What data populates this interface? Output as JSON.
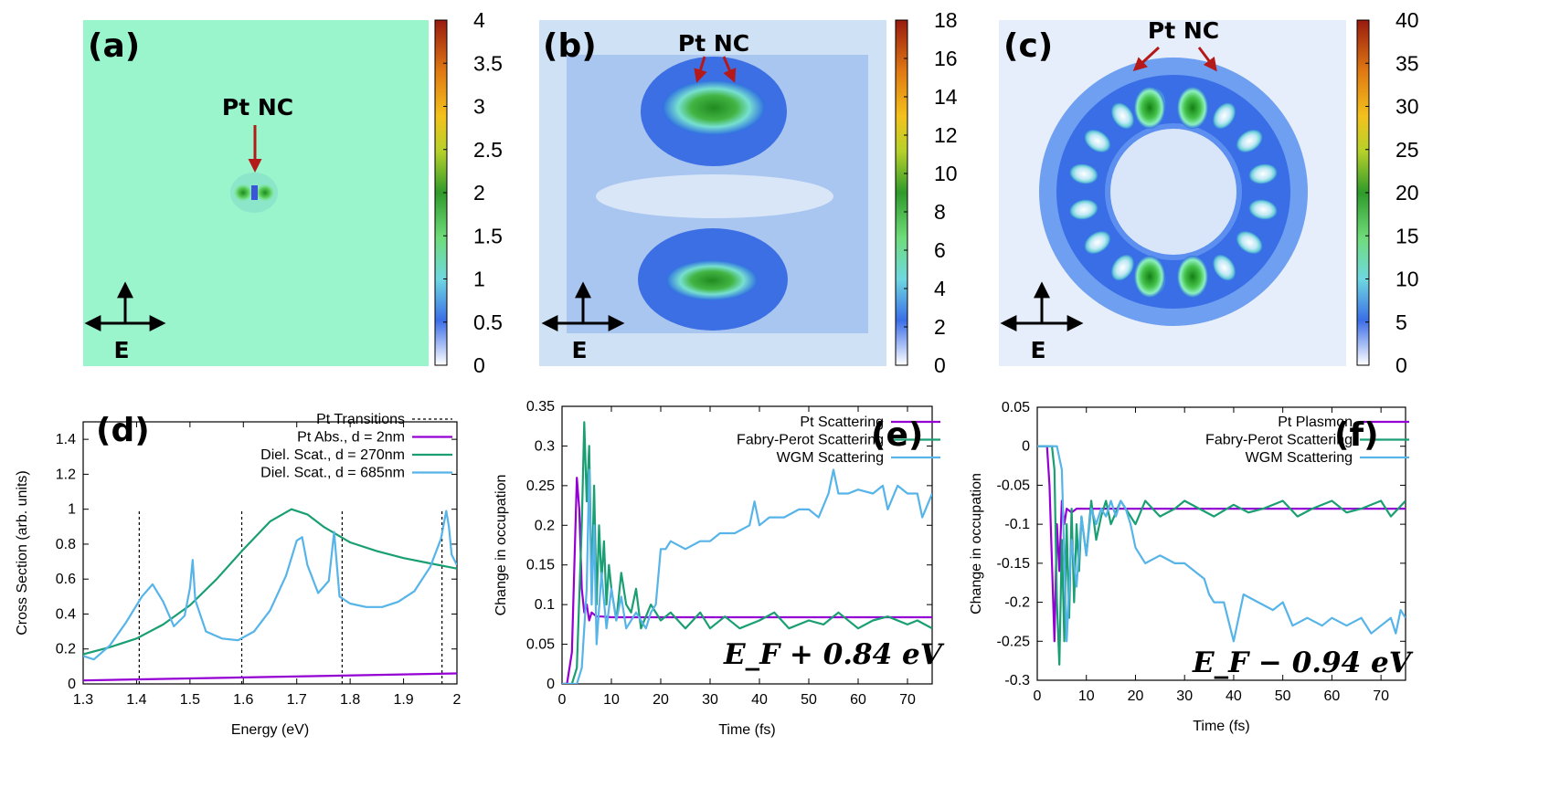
{
  "colors": {
    "magenta": "#9400d3",
    "green": "#1a9e73",
    "blue": "#56b4e9",
    "arrow_red": "#b41a1a"
  },
  "field_maps": [
    {
      "label": "(a)",
      "pt_label": "Pt NC",
      "e_label": "E",
      "background": "#9af5cc",
      "colorbar_ticks": [
        "4",
        "3.5",
        "3",
        "2.5",
        "2",
        "1.5",
        "1",
        "0.5",
        "0"
      ]
    },
    {
      "label": "(b)",
      "pt_label": "Pt NC",
      "e_label": "E",
      "background": "#cfe1f5",
      "colorbar_ticks": [
        "18",
        "16",
        "14",
        "12",
        "10",
        "8",
        "6",
        "4",
        "2",
        "0"
      ]
    },
    {
      "label": "(c)",
      "pt_label": "Pt NC",
      "e_label": "E",
      "background": "#e6eefb",
      "colorbar_ticks": [
        "40",
        "35",
        "30",
        "25",
        "20",
        "15",
        "10",
        "5",
        "0"
      ]
    }
  ],
  "chart_data": [
    {
      "panel": "(d)",
      "type": "line",
      "xlabel": "Energy (eV)",
      "ylabel": "Cross Section (arb. units)",
      "xlim": [
        1.3,
        2.0
      ],
      "ylim": [
        0,
        1.5
      ],
      "xticks": [
        "1.3",
        "1.4",
        "1.5",
        "1.6",
        "1.7",
        "1.8",
        "1.9",
        "2"
      ],
      "yticks": [
        "0",
        "0.2",
        "0.4",
        "0.6",
        "0.8",
        "1",
        "1.2",
        "1.4"
      ],
      "legend_position": "top-right",
      "transitions": {
        "name": "Pt Transitions",
        "x": [
          1.405,
          1.597,
          1.785,
          1.972
        ]
      },
      "series": [
        {
          "name": "Pt Abs., d = 2nm",
          "color": "magenta",
          "x": [
            1.3,
            2.0
          ],
          "y": [
            0.02,
            0.06
          ]
        },
        {
          "name": "Diel. Scat., d = 270nm",
          "color": "green",
          "x": [
            1.3,
            1.35,
            1.4,
            1.45,
            1.5,
            1.55,
            1.6,
            1.65,
            1.69,
            1.72,
            1.75,
            1.8,
            1.85,
            1.9,
            1.95,
            2.0
          ],
          "y": [
            0.17,
            0.21,
            0.26,
            0.34,
            0.45,
            0.6,
            0.77,
            0.93,
            1.0,
            0.97,
            0.9,
            0.81,
            0.76,
            0.72,
            0.69,
            0.66
          ]
        },
        {
          "name": "Diel. Scat., d = 685nm",
          "color": "blue",
          "x": [
            1.3,
            1.32,
            1.35,
            1.38,
            1.41,
            1.43,
            1.45,
            1.47,
            1.49,
            1.5,
            1.505,
            1.51,
            1.53,
            1.56,
            1.59,
            1.62,
            1.65,
            1.68,
            1.7,
            1.71,
            1.72,
            1.74,
            1.76,
            1.77,
            1.78,
            1.8,
            1.83,
            1.86,
            1.89,
            1.92,
            1.95,
            1.97,
            1.98,
            1.985,
            1.99,
            2.0
          ],
          "y": [
            0.16,
            0.14,
            0.22,
            0.35,
            0.5,
            0.57,
            0.47,
            0.33,
            0.39,
            0.55,
            0.71,
            0.48,
            0.3,
            0.26,
            0.25,
            0.3,
            0.42,
            0.62,
            0.82,
            0.84,
            0.68,
            0.52,
            0.59,
            0.87,
            0.5,
            0.46,
            0.44,
            0.44,
            0.47,
            0.53,
            0.67,
            0.83,
            0.99,
            0.9,
            0.74,
            0.68
          ]
        }
      ]
    },
    {
      "panel": "(e)",
      "type": "line",
      "xlabel": "Time (fs)",
      "ylabel": "Change in occupation",
      "xlim": [
        0,
        75
      ],
      "ylim": [
        0,
        0.35
      ],
      "xticks": [
        "0",
        "10",
        "20",
        "30",
        "40",
        "50",
        "60",
        "70"
      ],
      "yticks": [
        "0",
        "0.05",
        "0.1",
        "0.15",
        "0.2",
        "0.25",
        "0.3",
        "0.35"
      ],
      "legend_position": "top-center",
      "annotation": "E_F + 0.84 eV",
      "series": [
        {
          "name": "Pt Scattering",
          "color": "magenta",
          "x": [
            0,
            1,
            2,
            2.5,
            3,
            3.5,
            4,
            4.5,
            5,
            5.5,
            6,
            7,
            8,
            10,
            15,
            75
          ],
          "y": [
            0,
            0,
            0.04,
            0.15,
            0.26,
            0.22,
            0.12,
            0.09,
            0.1,
            0.08,
            0.09,
            0.085,
            0.085,
            0.084,
            0.084,
            0.084
          ]
        },
        {
          "name": "Fabry-Perot Scattering",
          "color": "green",
          "x": [
            0,
            2,
            3,
            4,
            4.5,
            5,
            5.5,
            6,
            6.5,
            7,
            7.5,
            8,
            8.5,
            9,
            9.5,
            10,
            11,
            12,
            13,
            14,
            15,
            16,
            18,
            20,
            22,
            25,
            28,
            30,
            33,
            36,
            40,
            43,
            46,
            50,
            53,
            56,
            60,
            63,
            66,
            70,
            72,
            75
          ],
          "y": [
            0,
            0,
            0.02,
            0.2,
            0.33,
            0.23,
            0.3,
            0.12,
            0.25,
            0.1,
            0.2,
            0.13,
            0.18,
            0.1,
            0.15,
            0.12,
            0.08,
            0.14,
            0.1,
            0.09,
            0.12,
            0.07,
            0.1,
            0.08,
            0.09,
            0.07,
            0.09,
            0.07,
            0.085,
            0.07,
            0.08,
            0.09,
            0.07,
            0.08,
            0.075,
            0.09,
            0.07,
            0.08,
            0.085,
            0.075,
            0.08,
            0.07
          ]
        },
        {
          "name": "WGM Scattering",
          "color": "blue",
          "x": [
            0,
            3,
            4,
            5,
            5.5,
            6,
            6.5,
            7,
            8,
            9,
            10,
            11,
            12,
            13,
            15,
            17,
            18,
            19,
            20,
            21,
            22,
            25,
            28,
            30,
            32,
            35,
            38,
            39,
            40,
            42,
            45,
            48,
            50,
            52,
            54,
            55,
            56,
            58,
            60,
            63,
            65,
            66,
            68,
            70,
            72,
            73,
            75
          ],
          "y": [
            0,
            0,
            0.02,
            0.12,
            0.27,
            0.1,
            0.2,
            0.05,
            0.14,
            0.07,
            0.12,
            0.08,
            0.11,
            0.07,
            0.09,
            0.07,
            0.09,
            0.1,
            0.17,
            0.17,
            0.18,
            0.17,
            0.18,
            0.18,
            0.19,
            0.19,
            0.2,
            0.23,
            0.2,
            0.21,
            0.21,
            0.22,
            0.22,
            0.21,
            0.24,
            0.27,
            0.24,
            0.24,
            0.245,
            0.24,
            0.25,
            0.22,
            0.25,
            0.24,
            0.24,
            0.21,
            0.24
          ]
        }
      ]
    },
    {
      "panel": "(f)",
      "type": "line",
      "xlabel": "Time (fs)",
      "ylabel": "Change in occupation",
      "xlim": [
        0,
        75
      ],
      "ylim": [
        -0.3,
        0.05
      ],
      "xticks": [
        "0",
        "10",
        "20",
        "30",
        "40",
        "50",
        "60",
        "70"
      ],
      "yticks": [
        "-0.3",
        "-0.25",
        "-0.2",
        "-0.15",
        "-0.1",
        "-0.05",
        "0",
        "0.05"
      ],
      "legend_position": "top-center",
      "annotation": "E_F − 0.94 eV",
      "series": [
        {
          "name": "Pt Plasmon",
          "color": "magenta",
          "x": [
            0,
            2,
            2.5,
            3,
            3.5,
            4,
            4.5,
            5,
            5.5,
            6,
            7,
            8,
            10,
            15,
            75
          ],
          "y": [
            0,
            0,
            -0.05,
            -0.15,
            -0.25,
            -0.1,
            -0.16,
            -0.07,
            -0.1,
            -0.08,
            -0.085,
            -0.08,
            -0.08,
            -0.08,
            -0.08
          ]
        },
        {
          "name": "Fabry-Perot Scattering",
          "color": "green",
          "x": [
            0,
            3,
            3.5,
            4,
            4.5,
            5,
            5.5,
            6,
            6.5,
            7,
            7.5,
            8,
            8.5,
            9,
            10,
            11,
            12,
            13,
            14,
            15,
            17,
            20,
            22,
            25,
            28,
            30,
            33,
            36,
            40,
            43,
            46,
            50,
            53,
            56,
            60,
            63,
            66,
            70,
            72,
            75
          ],
          "y": [
            0,
            0,
            -0.03,
            -0.2,
            -0.28,
            -0.12,
            -0.25,
            -0.1,
            -0.22,
            -0.08,
            -0.2,
            -0.1,
            -0.16,
            -0.09,
            -0.14,
            -0.07,
            -0.12,
            -0.09,
            -0.07,
            -0.1,
            -0.07,
            -0.1,
            -0.07,
            -0.09,
            -0.08,
            -0.07,
            -0.08,
            -0.09,
            -0.075,
            -0.085,
            -0.08,
            -0.07,
            -0.09,
            -0.08,
            -0.07,
            -0.085,
            -0.08,
            -0.07,
            -0.09,
            -0.07
          ]
        },
        {
          "name": "WGM Scattering",
          "color": "blue",
          "x": [
            0,
            4,
            5,
            6,
            6.5,
            7,
            8,
            9,
            10,
            11,
            12,
            13,
            14,
            15,
            16,
            17,
            18,
            19,
            20,
            21,
            22,
            25,
            28,
            30,
            32,
            34,
            35,
            36,
            38,
            40,
            42,
            45,
            48,
            50,
            52,
            55,
            58,
            60,
            63,
            66,
            68,
            70,
            72,
            73,
            74,
            75
          ],
          "y": [
            0,
            0,
            -0.03,
            -0.25,
            -0.18,
            -0.12,
            -0.18,
            -0.09,
            -0.14,
            -0.08,
            -0.1,
            -0.08,
            -0.09,
            -0.07,
            -0.09,
            -0.07,
            -0.08,
            -0.1,
            -0.13,
            -0.14,
            -0.15,
            -0.14,
            -0.15,
            -0.15,
            -0.16,
            -0.17,
            -0.19,
            -0.2,
            -0.2,
            -0.25,
            -0.19,
            -0.2,
            -0.21,
            -0.2,
            -0.23,
            -0.22,
            -0.23,
            -0.22,
            -0.23,
            -0.22,
            -0.24,
            -0.23,
            -0.22,
            -0.24,
            -0.21,
            -0.22
          ]
        }
      ]
    }
  ]
}
